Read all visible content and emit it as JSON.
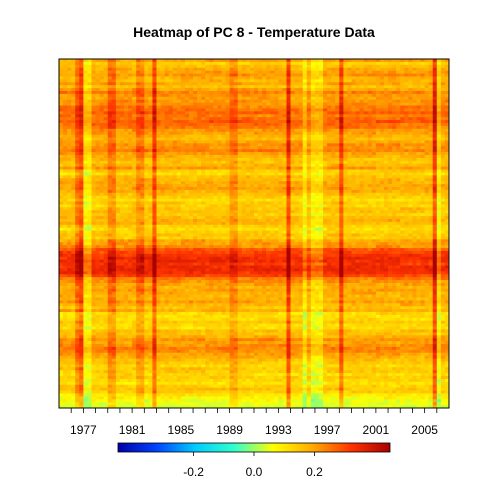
{
  "chart_data": {
    "type": "heatmap",
    "title": "Heatmap of PC 8  - Temperature Data",
    "xlabel": "",
    "ylabel": "",
    "x_range": [
      1975,
      2007
    ],
    "x_ticks": [
      "1977",
      "1981",
      "1985",
      "1989",
      "1993",
      "1997",
      "2001",
      "2005"
    ],
    "colorbar": {
      "range": [
        -0.45,
        0.45
      ],
      "ticks": [
        "-0.2",
        "0.0",
        "0.2"
      ],
      "colors": [
        "#0000aa",
        "#0044ff",
        "#00ccff",
        "#33ffcc",
        "#ffff00",
        "#ffaa00",
        "#ff3300",
        "#aa0000"
      ]
    },
    "n_rows": 120,
    "row_values": [
      0.2,
      0.14,
      0.16,
      0.18,
      0.2,
      0.22,
      0.18,
      0.17,
      0.19,
      0.16,
      0.2,
      0.24,
      0.22,
      0.2,
      0.22,
      0.22,
      0.24,
      0.26,
      0.27,
      0.24,
      0.26,
      0.28,
      0.26,
      0.25,
      0.22,
      0.2,
      0.18,
      0.17,
      0.2,
      0.22,
      0.22,
      0.24,
      0.2,
      0.18,
      0.16,
      0.15,
      0.17,
      0.2,
      0.14,
      0.12,
      0.16,
      0.17,
      0.18,
      0.19,
      0.2,
      0.18,
      0.16,
      0.14,
      0.12,
      0.14,
      0.13,
      0.16,
      0.15,
      0.14,
      0.16,
      0.18,
      0.17,
      0.14,
      0.12,
      0.13,
      0.15,
      0.14,
      0.2,
      0.2,
      0.22,
      0.28,
      0.3,
      0.32,
      0.34,
      0.34,
      0.32,
      0.34,
      0.35,
      0.33,
      0.3,
      0.24,
      0.22,
      0.2,
      0.18,
      0.2,
      0.19,
      0.18,
      0.17,
      0.2,
      0.18,
      0.16,
      0.18,
      0.12,
      0.11,
      0.12,
      0.14,
      0.12,
      0.11,
      0.16,
      0.15,
      0.18,
      0.22,
      0.2,
      0.22,
      0.24,
      0.22,
      0.2,
      0.18,
      0.16,
      0.14,
      0.12,
      0.15,
      0.14,
      0.12,
      0.14,
      0.12,
      0.11,
      0.13,
      0.15,
      0.14,
      0.1,
      0.08,
      0.06,
      0.05,
      0.04
    ],
    "column_offsets": [
      {
        "year": 1976.6,
        "offset": 0.08
      },
      {
        "year": 1976.9,
        "offset": 0.12
      },
      {
        "year": 1977.3,
        "offset": -0.08
      },
      {
        "year": 1979.4,
        "offset": 0.07
      },
      {
        "year": 1981.7,
        "offset": 0.06
      },
      {
        "year": 1982.8,
        "offset": 0.13
      },
      {
        "year": 1989.4,
        "offset": 0.05
      },
      {
        "year": 1993.9,
        "offset": 0.14
      },
      {
        "year": 1995.2,
        "offset": -0.08
      },
      {
        "year": 1995.9,
        "offset": -0.07
      },
      {
        "year": 1996.3,
        "offset": -0.07
      },
      {
        "year": 1998.2,
        "offset": 0.12
      },
      {
        "year": 2005.8,
        "offset": 0.15
      },
      {
        "year": 2006.2,
        "offset": -0.07
      }
    ],
    "grid": false,
    "legend": "bottom"
  }
}
